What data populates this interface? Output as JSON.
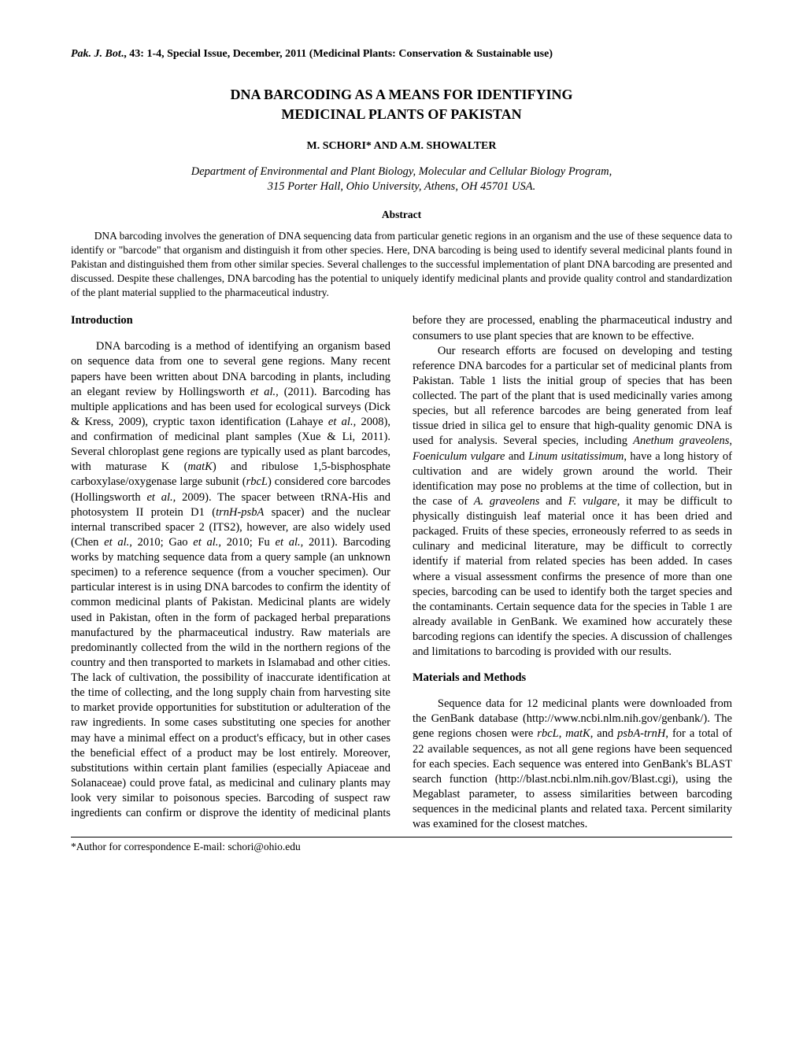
{
  "citation": {
    "journal_abbrev": "Pak. J. Bot",
    "details": "., 43: 1-4, Special Issue, December, 2011 (Medicinal Plants: Conservation & Sustainable use)"
  },
  "title_line1": "DNA BARCODING AS A MEANS FOR IDENTIFYING",
  "title_line2": "MEDICINAL PLANTS OF PAKISTAN",
  "authors": "M. SCHORI* AND A.M. SHOWALTER",
  "affiliation_line1": "Department of Environmental and Plant Biology, Molecular and Cellular Biology Program,",
  "affiliation_line2": "315 Porter Hall, Ohio University, Athens, OH 45701 USA.",
  "abstract_heading": "Abstract",
  "abstract_text": "DNA barcoding involves the generation of DNA sequencing data from particular genetic regions in an organism and the use of these sequence data to identify or \"barcode\" that organism and distinguish it from other species. Here, DNA barcoding is being used to identify several medicinal plants found in Pakistan and distinguished them from other similar species. Several challenges to the successful implementation of plant DNA barcoding are presented and discussed. Despite these challenges, DNA barcoding has the potential to uniquely identify medicinal plants and provide quality control and standardization of the plant material supplied to the pharmaceutical industry.",
  "sections": {
    "intro_heading": "Introduction",
    "materials_heading": "Materials and Methods"
  },
  "footer_note": "*Author for correspondence E-mail: schori@ohio.edu"
}
